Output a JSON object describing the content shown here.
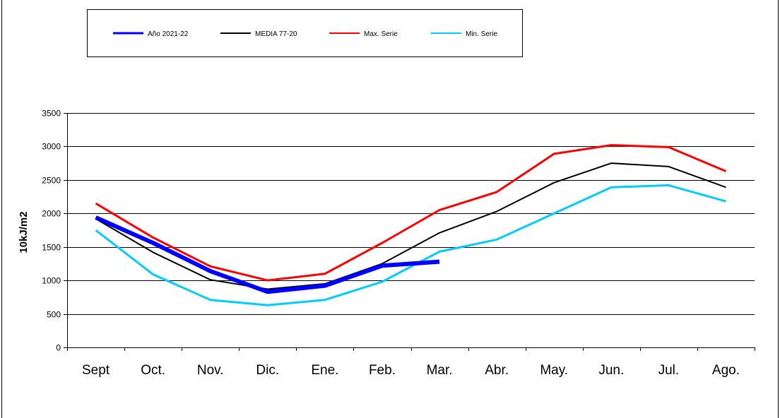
{
  "chart_data": {
    "type": "line",
    "title": "",
    "xlabel": "",
    "ylabel": "10kJ/m2",
    "categories": [
      "Sept",
      "Oct.",
      "Nov.",
      "Dic.",
      "Ene.",
      "Feb.",
      "Mar.",
      "Abr.",
      "May.",
      "Jun.",
      "Jul.",
      "Ago."
    ],
    "ylim": [
      0,
      3500
    ],
    "yticks": [
      0,
      500,
      1000,
      1500,
      2000,
      2500,
      3000,
      3500
    ],
    "grid": true,
    "legend_position": "top",
    "series": [
      {
        "name": "Año 2021-22",
        "color": "#0000ff",
        "width": "thick",
        "values": [
          1940,
          1560,
          1140,
          830,
          920,
          1220,
          1280,
          null,
          null,
          null,
          null,
          null
        ]
      },
      {
        "name": "MEDIA 77-20",
        "color": "#000000",
        "width": "thin",
        "values": [
          1920,
          1420,
          1010,
          870,
          950,
          1250,
          1710,
          2030,
          2460,
          2750,
          2700,
          2390
        ]
      },
      {
        "name": "Max. Serie",
        "color": "#ff0000",
        "width": "medium",
        "values": [
          2150,
          1640,
          1210,
          1000,
          1100,
          1560,
          2050,
          2320,
          2890,
          3020,
          2990,
          2630
        ]
      },
      {
        "name": "Min. Serie",
        "color": "#00ccff",
        "width": "medium",
        "values": [
          1750,
          1090,
          710,
          630,
          710,
          980,
          1430,
          1610,
          2000,
          2390,
          2420,
          2180
        ]
      }
    ]
  }
}
